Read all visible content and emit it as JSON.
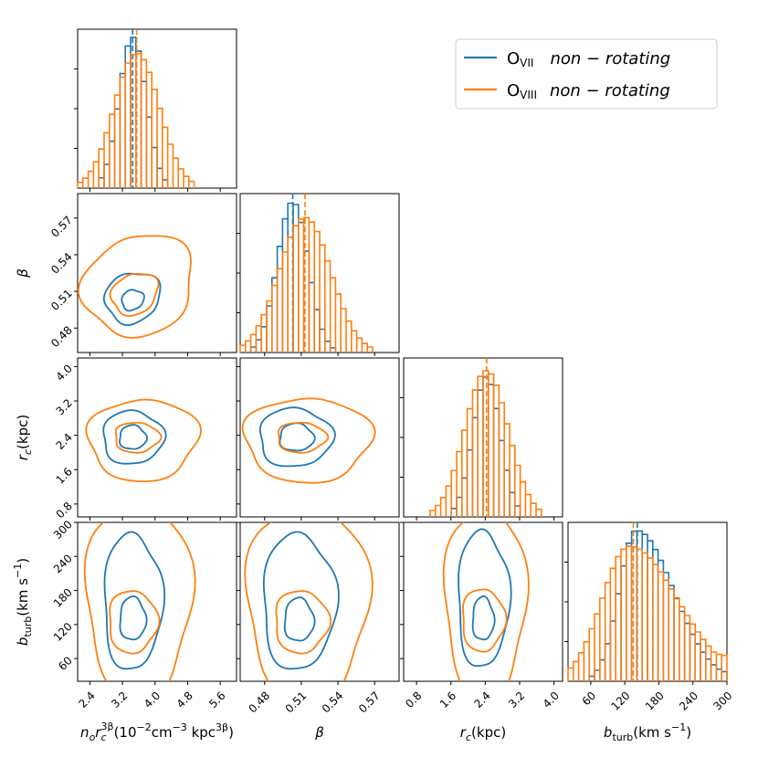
{
  "chart_data": {
    "type": "corner",
    "colors": {
      "ovii": "#1f77b4",
      "oviii": "#ff7f0e"
    },
    "legend": {
      "placement": "top-right",
      "entries": [
        {
          "ion": "O",
          "sub": "VII",
          "desc": "non − rotating"
        },
        {
          "ion": "O",
          "sub": "VIII",
          "desc": "non − rotating"
        }
      ]
    },
    "params": [
      {
        "key": "n",
        "range": [
          2.1,
          6.0
        ],
        "ticks": [
          2.4,
          3.2,
          4.0,
          4.8,
          5.6
        ],
        "tick_labels": [
          "2.4",
          "3.2",
          "4.0",
          "4.8",
          "5.6"
        ],
        "label_main": "n",
        "label_sub1": "o",
        "label_mid": "r",
        "label_sub2": "c",
        "label_sup": "3β",
        "label_units": "(10",
        "label_units2": "cm",
        "label_units3": " kpc",
        "label_exp1": "−2",
        "label_exp2": "−3",
        "label_exp3": "3β",
        "label_close": ")"
      },
      {
        "key": "beta",
        "range": [
          0.46,
          0.59
        ],
        "ticks": [
          0.48,
          0.51,
          0.54,
          0.57
        ],
        "tick_labels": [
          "0.48",
          "0.51",
          "0.54",
          "0.57"
        ],
        "label": "β"
      },
      {
        "key": "rc",
        "range": [
          0.5,
          4.2
        ],
        "ticks": [
          0.8,
          1.6,
          2.4,
          3.2,
          4.0
        ],
        "tick_labels": [
          "0.8",
          "1.6",
          "2.4",
          "3.2",
          "4.0"
        ],
        "label": "r",
        "label_sub": "c",
        "label_units": "(kpc)"
      },
      {
        "key": "bturb",
        "range": [
          20,
          300
        ],
        "ticks": [
          60,
          120,
          180,
          240,
          300
        ],
        "tick_labels": [
          "60",
          "120",
          "180",
          "240",
          "300"
        ],
        "label": "b",
        "label_sub": "turb",
        "label_units": "(km s",
        "label_exp": "−1",
        "label_close": ")"
      }
    ],
    "y_labels": {
      "beta": "β",
      "rc": "r",
      "rc_sub": "c",
      "rc_units": "(kpc)",
      "bturb": "b",
      "bturb_sub": "turb",
      "bturb_units": "(km s",
      "bturb_exp": "−1",
      "bturb_close": ")"
    },
    "marginals": {
      "ovii": [
        {
          "mean": 3.45,
          "sd": 0.33,
          "median": 3.45,
          "peak": 0.95
        },
        {
          "mean": 0.503,
          "sd": 0.0125,
          "median": 0.503,
          "peak": 0.95
        },
        {
          "mean": 2.43,
          "sd": 0.32,
          "median": 2.43,
          "peak": 0.88
        },
        {
          "mean": 140,
          "sd_left": 30,
          "sd_right": 65,
          "median": 142,
          "peak": 0.95,
          "tail": 0.1
        }
      ],
      "oviii": [
        {
          "mean": 3.55,
          "sd": 0.55,
          "median": 3.55,
          "peak": 0.85
        },
        {
          "mean": 0.513,
          "sd": 0.021,
          "median": 0.513,
          "peak": 0.85
        },
        {
          "mean": 2.43,
          "sd": 0.5,
          "median": 2.43,
          "peak": 0.92
        },
        {
          "mean": 128,
          "sd_left": 48,
          "sd_right": 85,
          "median": 135,
          "peak": 0.85,
          "tail": 0.28
        }
      ]
    },
    "contours": {
      "beta|n": {
        "ovii": [
          {
            "cx": 3.45,
            "cy": 0.503,
            "rx": 0.28,
            "ry": 0.008,
            "rot": 0.5
          },
          {
            "cx": 3.45,
            "cy": 0.505,
            "rx": 0.7,
            "ry": 0.02,
            "rot": 0.5
          }
        ],
        "oviii": [
          {
            "cx": 3.5,
            "cy": 0.508,
            "rx": 0.6,
            "ry": 0.016,
            "rot": 0.55
          },
          {
            "cx": 3.6,
            "cy": 0.515,
            "rx": 1.4,
            "ry": 0.04,
            "rot": 0.5
          }
        ]
      },
      "rc|n": {
        "ovii": [
          {
            "cx": 3.45,
            "cy": 2.35,
            "rx": 0.33,
            "ry": 0.28,
            "rot": 0
          },
          {
            "cx": 3.45,
            "cy": 2.35,
            "rx": 0.75,
            "ry": 0.62,
            "rot": 0
          }
        ],
        "oviii": [
          {
            "cx": 3.55,
            "cy": 2.35,
            "rx": 0.55,
            "ry": 0.35,
            "rot": 0
          },
          {
            "cx": 3.7,
            "cy": 2.3,
            "rx": 1.35,
            "ry": 0.95,
            "rot": 0.05
          }
        ]
      },
      "rc|beta": {
        "ovii": [
          {
            "cx": 0.506,
            "cy": 2.35,
            "rx": 0.014,
            "ry": 0.32,
            "rot": 0
          },
          {
            "cx": 0.505,
            "cy": 2.35,
            "rx": 0.03,
            "ry": 0.68,
            "rot": 0
          }
        ],
        "oviii": [
          {
            "cx": 0.51,
            "cy": 2.35,
            "rx": 0.02,
            "ry": 0.35,
            "rot": 0
          },
          {
            "cx": 0.515,
            "cy": 2.3,
            "rx": 0.052,
            "ry": 0.98,
            "rot": 0
          }
        ]
      },
      "bturb|n": {
        "ovii": [
          {
            "cx": 3.45,
            "cy": 130,
            "rx": 0.32,
            "ry": 38,
            "rot": 0
          },
          {
            "cx": 3.45,
            "cy": 160,
            "rx": 0.72,
            "ry": 120,
            "rot": 0
          }
        ],
        "oviii": [
          {
            "cx": 3.45,
            "cy": 125,
            "rx": 0.6,
            "ry": 55,
            "rot": 0
          },
          {
            "cx": 3.6,
            "cy": 165,
            "rx": 1.3,
            "ry": 175,
            "rot": 0
          }
        ]
      },
      "bturb|beta": {
        "ovii": [
          {
            "cx": 0.508,
            "cy": 128,
            "rx": 0.012,
            "ry": 38,
            "rot": 0
          },
          {
            "cx": 0.508,
            "cy": 160,
            "rx": 0.03,
            "ry": 120,
            "rot": 0
          }
        ],
        "oviii": [
          {
            "cx": 0.51,
            "cy": 125,
            "rx": 0.022,
            "ry": 55,
            "rot": 0
          },
          {
            "cx": 0.515,
            "cy": 160,
            "rx": 0.05,
            "ry": 175,
            "rot": 0
          }
        ]
      },
      "bturb|rc": {
        "ovii": [
          {
            "cx": 2.35,
            "cy": 130,
            "rx": 0.25,
            "ry": 38,
            "rot": 0
          },
          {
            "cx": 2.35,
            "cy": 165,
            "rx": 0.6,
            "ry": 120,
            "rot": 0
          }
        ],
        "oviii": [
          {
            "cx": 2.35,
            "cy": 128,
            "rx": 0.5,
            "ry": 55,
            "rot": 0
          },
          {
            "cx": 2.4,
            "cy": 160,
            "rx": 0.95,
            "ry": 170,
            "rot": 0
          }
        ]
      }
    }
  }
}
